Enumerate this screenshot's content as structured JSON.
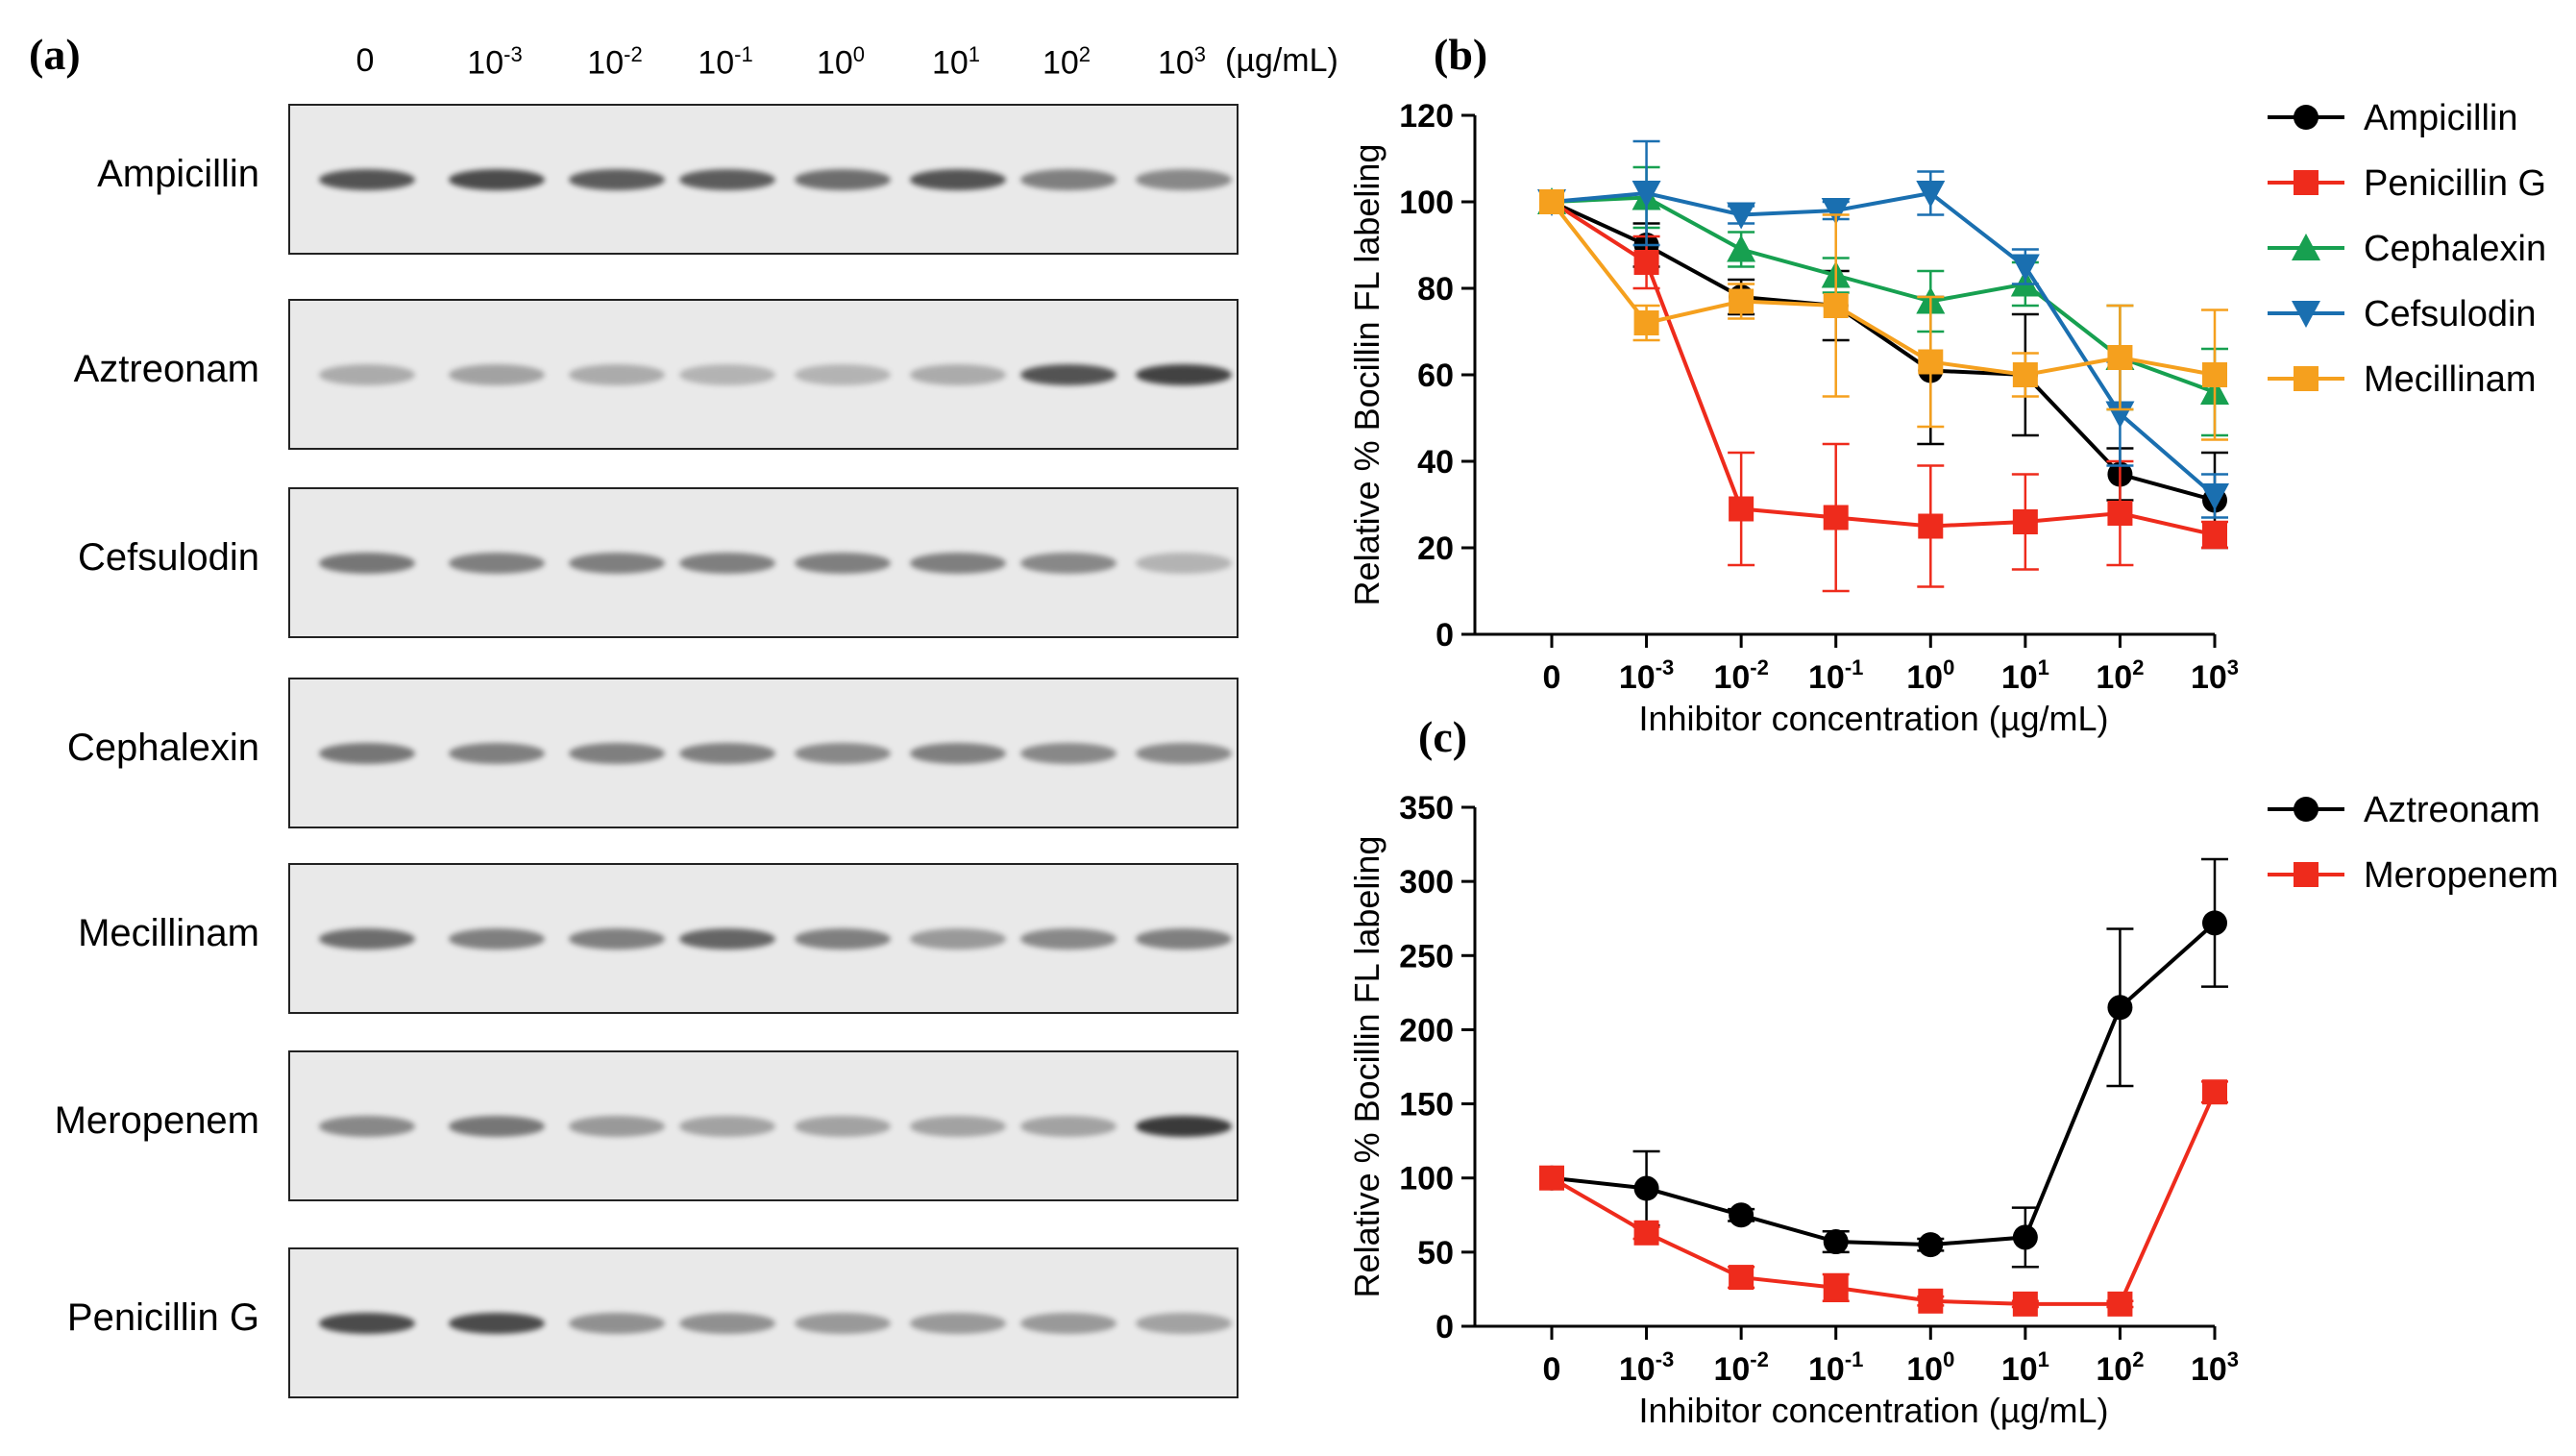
{
  "panels": {
    "a": "(a)",
    "b": "(b)",
    "c": "(c)"
  },
  "gel": {
    "lanes": [
      {
        "base": "0",
        "exp": ""
      },
      {
        "base": "10",
        "exp": "-3"
      },
      {
        "base": "10",
        "exp": "-2"
      },
      {
        "base": "10",
        "exp": "-1"
      },
      {
        "base": "10",
        "exp": "0"
      },
      {
        "base": "10",
        "exp": "1"
      },
      {
        "base": "10",
        "exp": "2"
      },
      {
        "base": "10",
        "exp": "3"
      }
    ],
    "unit": "(µg/mL)",
    "rows": [
      {
        "name": "Ampicillin",
        "intensity": [
          0.85,
          0.9,
          0.8,
          0.8,
          0.7,
          0.85,
          0.6,
          0.55
        ]
      },
      {
        "name": "Aztreonam",
        "intensity": [
          0.35,
          0.4,
          0.35,
          0.3,
          0.3,
          0.35,
          0.85,
          0.95
        ]
      },
      {
        "name": "Cefsulodin",
        "intensity": [
          0.65,
          0.6,
          0.6,
          0.6,
          0.6,
          0.6,
          0.55,
          0.3
        ]
      },
      {
        "name": "Cephalexin",
        "intensity": [
          0.65,
          0.6,
          0.6,
          0.6,
          0.55,
          0.6,
          0.55,
          0.55
        ]
      },
      {
        "name": "Mecillinam",
        "intensity": [
          0.7,
          0.6,
          0.6,
          0.75,
          0.6,
          0.45,
          0.55,
          0.6
        ]
      },
      {
        "name": "Meropenem",
        "intensity": [
          0.55,
          0.65,
          0.45,
          0.4,
          0.4,
          0.4,
          0.4,
          1.0
        ]
      },
      {
        "name": "Penicillin G",
        "intensity": [
          0.9,
          0.9,
          0.5,
          0.5,
          0.45,
          0.45,
          0.45,
          0.4
        ]
      }
    ]
  },
  "chart_data": [
    {
      "type": "line",
      "panel": "b",
      "title": "",
      "xlabel": "Inhibitor concentration (µg/mL)",
      "ylabel": "Relative % Bocillin FL labeling",
      "ylim": [
        0,
        120
      ],
      "yticks": [
        0,
        20,
        40,
        60,
        80,
        100,
        120
      ],
      "categories": [
        {
          "base": "0",
          "exp": ""
        },
        {
          "base": "10",
          "exp": "-3"
        },
        {
          "base": "10",
          "exp": "-2"
        },
        {
          "base": "10",
          "exp": "-1"
        },
        {
          "base": "10",
          "exp": "0"
        },
        {
          "base": "10",
          "exp": "1"
        },
        {
          "base": "10",
          "exp": "2"
        },
        {
          "base": "10",
          "exp": "3"
        }
      ],
      "legend_position": "right",
      "series": [
        {
          "name": "Ampicillin",
          "color": "#000000",
          "marker": "circle",
          "values": [
            100,
            90,
            78,
            76,
            61,
            60,
            37,
            31
          ],
          "errors": [
            0,
            5,
            4,
            8,
            17,
            14,
            6,
            11
          ]
        },
        {
          "name": "Penicillin G",
          "color": "#ee2b1c",
          "marker": "square",
          "values": [
            100,
            86,
            29,
            27,
            25,
            26,
            28,
            23
          ],
          "errors": [
            0,
            6,
            13,
            17,
            14,
            11,
            12,
            3
          ]
        },
        {
          "name": "Cephalexin",
          "color": "#17a050",
          "marker": "triangle-up",
          "values": [
            100,
            101,
            89,
            83,
            77,
            81,
            64,
            56
          ],
          "errors": [
            0,
            7,
            4,
            4,
            7,
            5,
            12,
            10
          ]
        },
        {
          "name": "Cefsulodin",
          "color": "#1a6fb0",
          "marker": "triangle-down",
          "values": [
            100,
            102,
            97,
            98,
            102,
            85,
            51,
            32
          ],
          "errors": [
            0,
            12,
            2,
            2,
            5,
            4,
            12,
            5
          ]
        },
        {
          "name": "Mecillinam",
          "color": "#f5a01e",
          "marker": "square",
          "values": [
            100,
            72,
            77,
            76,
            63,
            60,
            64,
            60
          ],
          "errors": [
            0,
            4,
            4,
            21,
            15,
            5,
            12,
            15
          ]
        }
      ]
    },
    {
      "type": "line",
      "panel": "c",
      "title": "",
      "xlabel": "Inhibitor concentration (µg/mL)",
      "ylabel": "Relative % Bocillin FL labeling",
      "ylim": [
        0,
        350
      ],
      "yticks": [
        0,
        50,
        100,
        150,
        200,
        250,
        300,
        350
      ],
      "categories": [
        {
          "base": "0",
          "exp": ""
        },
        {
          "base": "10",
          "exp": "-3"
        },
        {
          "base": "10",
          "exp": "-2"
        },
        {
          "base": "10",
          "exp": "-1"
        },
        {
          "base": "10",
          "exp": "0"
        },
        {
          "base": "10",
          "exp": "1"
        },
        {
          "base": "10",
          "exp": "2"
        },
        {
          "base": "10",
          "exp": "3"
        }
      ],
      "legend_position": "right",
      "series": [
        {
          "name": "Aztreonam",
          "color": "#000000",
          "marker": "circle",
          "values": [
            100,
            93,
            75,
            57,
            55,
            60,
            215,
            272
          ],
          "errors": [
            0,
            25,
            4,
            7,
            4,
            20,
            53,
            43
          ]
        },
        {
          "name": "Meropenem",
          "color": "#ee2b1c",
          "marker": "square",
          "values": [
            100,
            63,
            33,
            26,
            17,
            15,
            15,
            158
          ],
          "errors": [
            0,
            4,
            7,
            9,
            3,
            2,
            2,
            7
          ]
        }
      ]
    }
  ]
}
